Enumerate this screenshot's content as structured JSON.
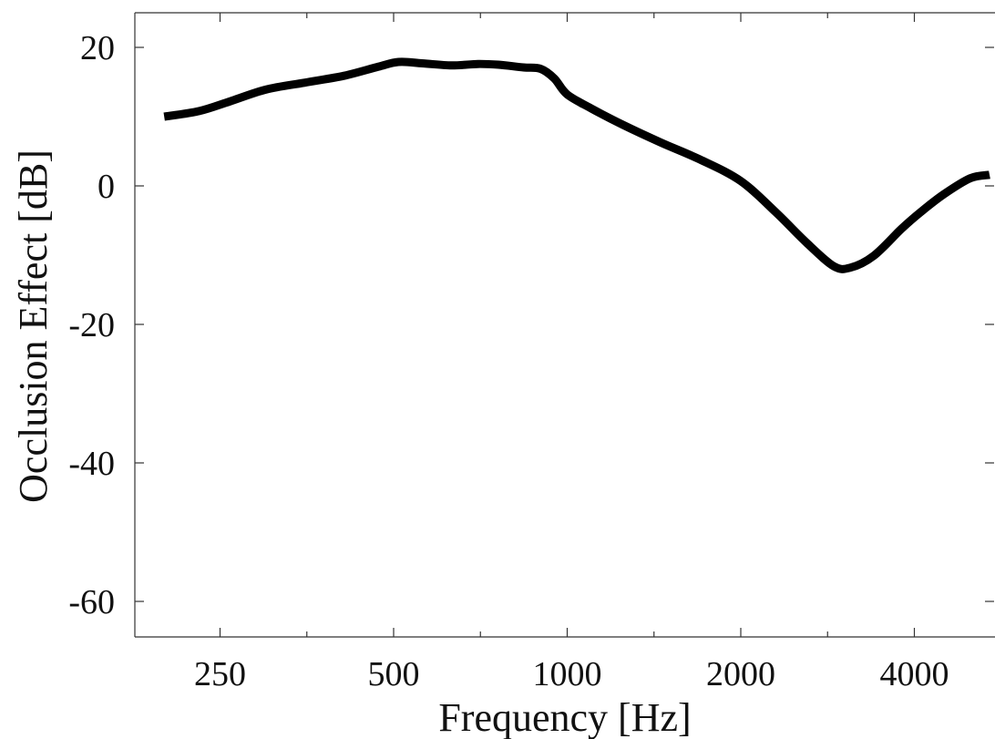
{
  "chart_data": {
    "type": "line",
    "title": "",
    "xlabel": "Frequency [Hz]",
    "ylabel": "Occlusion Effect [dB]",
    "xscale": "log2",
    "xlim": [
      165,
      5800
    ],
    "ylim": [
      -65,
      25
    ],
    "xticks": [
      {
        "value": 250,
        "label": "250"
      },
      {
        "value": 500,
        "label": "500"
      },
      {
        "value": 1000,
        "label": "1000"
      },
      {
        "value": 2000,
        "label": "2000"
      },
      {
        "value": 4000,
        "label": "4000"
      }
    ],
    "yticks": [
      {
        "value": 20,
        "label": "20"
      },
      {
        "value": 0,
        "label": "0"
      },
      {
        "value": -20,
        "label": "-20"
      },
      {
        "value": -40,
        "label": "-40"
      },
      {
        "value": -60,
        "label": "-60"
      }
    ],
    "grid": false,
    "legend": "none",
    "line_color": "#000000",
    "series": [
      {
        "x": [
          200,
          230,
          260,
          300,
          350,
          410,
          470,
          510,
          560,
          630,
          700,
          760,
          840,
          900,
          950,
          1000,
          1100,
          1250,
          1450,
          1700,
          2000,
          2300,
          2600,
          2900,
          3100,
          3400,
          3800,
          4100,
          4500,
          5000,
          5400
        ],
        "y": [
          10,
          10.8,
          12.2,
          13.9,
          14.9,
          15.9,
          17.2,
          17.9,
          17.7,
          17.4,
          17.6,
          17.5,
          17.1,
          16.9,
          15.5,
          13.2,
          11.2,
          8.8,
          6.3,
          3.8,
          0.7,
          -3.8,
          -8.2,
          -11.6,
          -11.8,
          -10.1,
          -6.2,
          -3.8,
          -1.2,
          1.1,
          1.6
        ]
      }
    ]
  }
}
